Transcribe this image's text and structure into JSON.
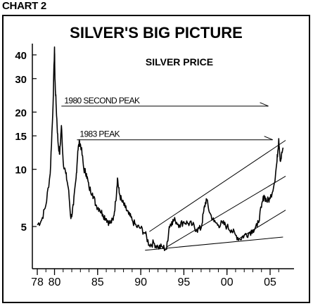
{
  "header": {
    "chart_label": "CHART 2"
  },
  "chart_data": {
    "type": "line",
    "title": "SILVER'S BIG PICTURE",
    "subtitle": "SILVER PRICE",
    "xlabel": "",
    "ylabel": "",
    "y_scale": "log",
    "ylim": [
      3.3,
      47
    ],
    "xlim": [
      1978.0,
      2007.0
    ],
    "x_tick_labels": [
      "78",
      "80",
      "85",
      "90",
      "95",
      "00",
      "05"
    ],
    "x_tick_values": [
      1978,
      1980,
      1985,
      1990,
      1995,
      2000,
      2005
    ],
    "y_tick_labels": [
      "40",
      "30",
      "20",
      "15",
      "10",
      "5"
    ],
    "y_tick_values": [
      40,
      30,
      20,
      15,
      10,
      5
    ],
    "grid": false,
    "series": [
      {
        "name": "",
        "x": [
          1978.0,
          1978.5,
          1979.0,
          1979.5,
          1979.8,
          1980.0,
          1980.05,
          1980.2,
          1980.4,
          1980.6,
          1980.8,
          1981.0,
          1981.3,
          1981.6,
          1981.9,
          1982.2,
          1982.5,
          1982.7,
          1982.9,
          1983.1,
          1983.4,
          1983.7,
          1984.0,
          1984.4,
          1984.8,
          1985.2,
          1985.6,
          1986.0,
          1986.4,
          1986.8,
          1987.1,
          1987.3,
          1987.5,
          1987.8,
          1988.2,
          1988.6,
          1989.0,
          1989.5,
          1990.0,
          1990.5,
          1991.0,
          1991.5,
          1992.0,
          1992.5,
          1993.0,
          1993.3,
          1993.6,
          1994.0,
          1994.5,
          1995.0,
          1995.5,
          1996.0,
          1996.5,
          1997.0,
          1997.3,
          1997.6,
          1998.0,
          1998.5,
          1999.0,
          1999.5,
          2000.0,
          2000.5,
          2001.0,
          2001.5,
          2002.0,
          2002.5,
          2003.0,
          2003.5,
          2004.0,
          2004.3,
          2004.6,
          2005.0,
          2005.5,
          2005.8,
          2006.0,
          2006.2,
          2006.5
        ],
        "values": [
          5.1,
          5.4,
          6.5,
          9.5,
          20,
          44,
          30,
          21,
          14,
          12,
          17,
          11,
          9.5,
          8,
          5.5,
          6.5,
          9,
          12.5,
          14,
          13,
          10,
          9.5,
          8,
          7.5,
          6.5,
          6.2,
          5.8,
          5.5,
          5.2,
          5.4,
          6.8,
          9,
          7.5,
          6.8,
          6.3,
          5.8,
          5.4,
          5.0,
          4.9,
          4.6,
          4.0,
          4.1,
          3.9,
          3.9,
          3.8,
          5.0,
          5.3,
          5.4,
          5.1,
          5.3,
          5.2,
          5.1,
          4.8,
          4.9,
          6.0,
          7.0,
          5.9,
          5.3,
          5.1,
          5.2,
          5.0,
          4.8,
          4.5,
          4.3,
          4.5,
          4.6,
          4.8,
          5.0,
          6.3,
          7.3,
          6.8,
          7.0,
          8.5,
          11.0,
          14.5,
          11.0,
          13.0
        ]
      }
    ],
    "annotations": [
      {
        "text": "1980 SECOND PEAK",
        "x": 1980.8,
        "y": 21.5,
        "x_end": 2004.8
      },
      {
        "text": "1983 PEAK",
        "x": 1982.6,
        "y": 14.3,
        "x_end": 2005.3
      }
    ],
    "trend_lines": [
      {
        "x": [
          1990.5,
          2006.5
        ],
        "values": [
          3.75,
          4.4
        ]
      },
      {
        "x": [
          1991.0,
          2006.8
        ],
        "values": [
          4.7,
          14.2
        ]
      },
      {
        "x": [
          1993.0,
          2006.8
        ],
        "values": [
          3.9,
          9.2
        ]
      },
      {
        "x": [
          2001.5,
          2006.8
        ],
        "values": [
          4.35,
          6.1
        ]
      }
    ],
    "colors": {
      "line": "#000000",
      "frame": "#000000",
      "background": "#ffffff"
    }
  }
}
